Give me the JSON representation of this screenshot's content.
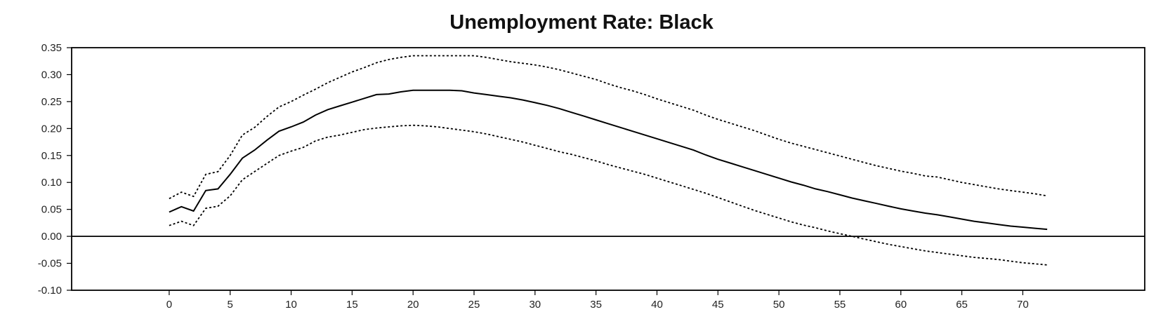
{
  "chart_data": {
    "type": "line",
    "title": "Unemployment Rate: Black",
    "xlabel": "",
    "ylabel": "",
    "xlim": [
      -8,
      80
    ],
    "ylim": [
      -0.1,
      0.35
    ],
    "x_ticks": [
      "0",
      "5",
      "10",
      "15",
      "20",
      "25",
      "30",
      "35",
      "40",
      "45",
      "50",
      "55",
      "60",
      "65",
      "70"
    ],
    "x_tick_values": [
      0,
      5,
      10,
      15,
      20,
      25,
      30,
      35,
      40,
      45,
      50,
      55,
      60,
      65,
      70
    ],
    "y_ticks": [
      "0.35",
      "0.30",
      "0.25",
      "0.20",
      "0.15",
      "0.10",
      "0.05",
      "0.00",
      "-0.05",
      "-0.10"
    ],
    "y_tick_values": [
      0.35,
      0.3,
      0.25,
      0.2,
      0.15,
      0.1,
      0.05,
      0.0,
      -0.05,
      -0.1
    ],
    "zero_line": true,
    "grid": false,
    "legend": "none",
    "series": [
      {
        "style": "solid",
        "color": "#000000",
        "x": [
          0,
          1,
          2,
          3,
          4,
          5,
          6,
          7,
          8,
          9,
          10,
          11,
          12,
          13,
          14,
          15,
          16,
          17,
          18,
          19,
          20,
          21,
          22,
          23,
          24,
          25,
          26,
          27,
          28,
          29,
          30,
          31,
          32,
          33,
          34,
          35,
          36,
          37,
          38,
          39,
          40,
          41,
          42,
          43,
          44,
          45,
          46,
          47,
          48,
          49,
          50,
          51,
          52,
          53,
          54,
          55,
          56,
          57,
          58,
          59,
          60,
          61,
          62,
          63,
          64,
          65,
          66,
          67,
          68,
          69,
          70,
          71,
          72
        ],
        "y": [
          0.045,
          0.055,
          0.047,
          0.085,
          0.088,
          0.115,
          0.145,
          0.16,
          0.178,
          0.195,
          0.203,
          0.212,
          0.225,
          0.235,
          0.242,
          0.249,
          0.256,
          0.263,
          0.264,
          0.268,
          0.271,
          0.271,
          0.271,
          0.271,
          0.27,
          0.266,
          0.263,
          0.26,
          0.257,
          0.253,
          0.248,
          0.243,
          0.237,
          0.23,
          0.223,
          0.216,
          0.209,
          0.202,
          0.195,
          0.188,
          0.181,
          0.174,
          0.167,
          0.16,
          0.151,
          0.143,
          0.136,
          0.129,
          0.122,
          0.115,
          0.108,
          0.101,
          0.095,
          0.088,
          0.083,
          0.077,
          0.071,
          0.066,
          0.061,
          0.056,
          0.051,
          0.047,
          0.043,
          0.04,
          0.036,
          0.032,
          0.028,
          0.025,
          0.022,
          0.019,
          0.017,
          0.015,
          0.013
        ]
      },
      {
        "style": "dotted",
        "color": "#000000",
        "x": [
          0,
          1,
          2,
          3,
          4,
          5,
          6,
          7,
          8,
          9,
          10,
          11,
          12,
          13,
          14,
          15,
          16,
          17,
          18,
          19,
          20,
          21,
          22,
          23,
          24,
          25,
          26,
          27,
          28,
          29,
          30,
          31,
          32,
          33,
          34,
          35,
          36,
          37,
          38,
          39,
          40,
          41,
          42,
          43,
          44,
          45,
          46,
          47,
          48,
          49,
          50,
          51,
          52,
          53,
          54,
          55,
          56,
          57,
          58,
          59,
          60,
          61,
          62,
          63,
          64,
          65,
          66,
          67,
          68,
          69,
          70,
          71,
          72
        ],
        "y": [
          0.07,
          0.082,
          0.074,
          0.115,
          0.12,
          0.15,
          0.188,
          0.202,
          0.222,
          0.24,
          0.25,
          0.262,
          0.273,
          0.285,
          0.295,
          0.305,
          0.313,
          0.322,
          0.328,
          0.332,
          0.335,
          0.335,
          0.335,
          0.335,
          0.335,
          0.335,
          0.332,
          0.328,
          0.324,
          0.321,
          0.318,
          0.314,
          0.309,
          0.303,
          0.297,
          0.291,
          0.283,
          0.276,
          0.27,
          0.263,
          0.255,
          0.248,
          0.241,
          0.234,
          0.225,
          0.217,
          0.21,
          0.203,
          0.196,
          0.188,
          0.18,
          0.173,
          0.167,
          0.161,
          0.155,
          0.149,
          0.143,
          0.137,
          0.131,
          0.126,
          0.121,
          0.117,
          0.112,
          0.11,
          0.105,
          0.1,
          0.096,
          0.092,
          0.088,
          0.085,
          0.082,
          0.079,
          0.075
        ]
      },
      {
        "style": "dotted",
        "color": "#000000",
        "x": [
          0,
          1,
          2,
          3,
          4,
          5,
          6,
          7,
          8,
          9,
          10,
          11,
          12,
          13,
          14,
          15,
          16,
          17,
          18,
          19,
          20,
          21,
          22,
          23,
          24,
          25,
          26,
          27,
          28,
          29,
          30,
          31,
          32,
          33,
          34,
          35,
          36,
          37,
          38,
          39,
          40,
          41,
          42,
          43,
          44,
          45,
          46,
          47,
          48,
          49,
          50,
          51,
          52,
          53,
          54,
          55,
          56,
          57,
          58,
          59,
          60,
          61,
          62,
          63,
          64,
          65,
          66,
          67,
          68,
          69,
          70,
          71,
          72
        ],
        "y": [
          0.02,
          0.028,
          0.02,
          0.052,
          0.056,
          0.075,
          0.105,
          0.12,
          0.135,
          0.15,
          0.158,
          0.165,
          0.177,
          0.184,
          0.188,
          0.193,
          0.198,
          0.201,
          0.203,
          0.205,
          0.206,
          0.205,
          0.203,
          0.2,
          0.197,
          0.194,
          0.19,
          0.185,
          0.18,
          0.175,
          0.169,
          0.163,
          0.157,
          0.152,
          0.146,
          0.14,
          0.133,
          0.127,
          0.121,
          0.115,
          0.108,
          0.101,
          0.094,
          0.087,
          0.08,
          0.072,
          0.064,
          0.056,
          0.048,
          0.041,
          0.034,
          0.027,
          0.021,
          0.016,
          0.01,
          0.005,
          0.0,
          -0.005,
          -0.01,
          -0.015,
          -0.019,
          -0.023,
          -0.027,
          -0.03,
          -0.033,
          -0.036,
          -0.039,
          -0.041,
          -0.043,
          -0.046,
          -0.049,
          -0.051,
          -0.053
        ]
      }
    ]
  }
}
